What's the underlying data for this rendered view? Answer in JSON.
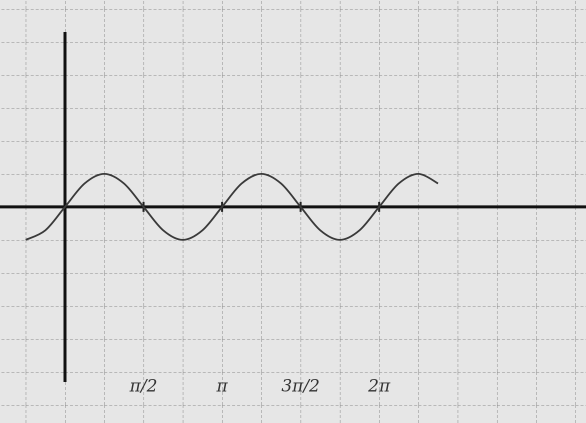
{
  "chart_data": {
    "type": "line",
    "x": [
      -0.7854,
      -0.3927,
      0,
      0.3927,
      0.7854,
      1.1781,
      1.5708,
      1.9635,
      2.3562,
      2.7489,
      3.1416,
      3.5343,
      3.927,
      4.3197,
      4.7124,
      5.1051,
      5.4978,
      5.8905,
      6.2832,
      6.6759,
      7.0686,
      7.4613
    ],
    "values": [
      -1,
      -0.71,
      0,
      0.71,
      1,
      0.71,
      0,
      -0.71,
      -1,
      -0.71,
      0,
      0.71,
      1,
      0.71,
      0,
      -0.71,
      -1,
      -0.71,
      0,
      0.71,
      1,
      0.71
    ],
    "color": "#3a3a3a",
    "xlim": [
      -1.3,
      10.42
    ],
    "ylim": [
      -6.55,
      6.27
    ],
    "xticks": [
      {
        "value": 1.5708,
        "label": "π/2"
      },
      {
        "value": 3.1416,
        "label": "π"
      },
      {
        "value": 4.7124,
        "label": "3π/2"
      },
      {
        "value": 6.2832,
        "label": "2π"
      }
    ]
  }
}
